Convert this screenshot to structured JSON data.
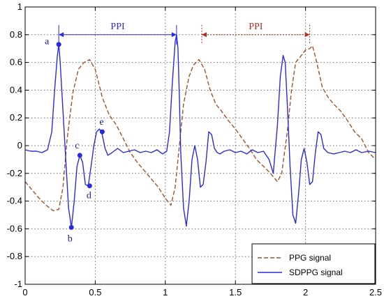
{
  "chart_data": {
    "type": "line",
    "title": "",
    "xlabel": "",
    "ylabel": "",
    "xlim": [
      0,
      2.5
    ],
    "ylim": [
      -1,
      1
    ],
    "xticks": [
      0,
      0.5,
      1,
      1.5,
      2,
      2.5
    ],
    "yticks": [
      -1,
      -0.8,
      -0.6,
      -0.4,
      -0.2,
      0,
      0.2,
      0.4,
      0.6,
      0.8,
      1
    ],
    "xtick_labels": [
      "0",
      "0.5",
      "1",
      "1.5",
      "2",
      "2.5"
    ],
    "ytick_labels": [
      "-1",
      "-0.8",
      "-0.6",
      "-0.4",
      "-0.2",
      "0",
      "0.2",
      "0.4",
      "0.6",
      "0.8",
      "1"
    ],
    "grid": true,
    "legend_position": "bottom-right",
    "series": [
      {
        "name": "PPG signal",
        "color": "#a0522d",
        "style": "dashed",
        "x": [
          0,
          0.05,
          0.1,
          0.15,
          0.2,
          0.24,
          0.27,
          0.3,
          0.34,
          0.38,
          0.42,
          0.46,
          0.5,
          0.55,
          0.6,
          0.65,
          0.7,
          0.75,
          0.8,
          0.85,
          0.9,
          0.95,
          1.0,
          1.04,
          1.07,
          1.1,
          1.13,
          1.17,
          1.2,
          1.24,
          1.28,
          1.32,
          1.36,
          1.4,
          1.45,
          1.5,
          1.55,
          1.6,
          1.65,
          1.7,
          1.75,
          1.8,
          1.83,
          1.87,
          1.9,
          1.93,
          1.97,
          2.0,
          2.03,
          2.05,
          2.08,
          2.12,
          2.16,
          2.2,
          2.25,
          2.3,
          2.35,
          2.4,
          2.45,
          2.5
        ],
        "y": [
          -0.26,
          -0.32,
          -0.38,
          -0.43,
          -0.47,
          -0.46,
          -0.3,
          0.05,
          0.38,
          0.55,
          0.6,
          0.62,
          0.55,
          0.35,
          0.22,
          0.15,
          0.05,
          -0.05,
          -0.12,
          -0.18,
          -0.24,
          -0.3,
          -0.38,
          -0.43,
          -0.3,
          0.0,
          0.3,
          0.5,
          0.58,
          0.62,
          0.55,
          0.4,
          0.3,
          0.25,
          0.18,
          0.12,
          0.05,
          -0.02,
          -0.1,
          -0.15,
          -0.2,
          -0.26,
          -0.2,
          0.1,
          0.4,
          0.6,
          0.65,
          0.69,
          0.7,
          0.72,
          0.6,
          0.42,
          0.35,
          0.3,
          0.25,
          0.18,
          0.1,
          0.05,
          -0.05,
          -0.1
        ]
      },
      {
        "name": "SDPPG signal",
        "color": "#2a2ae0",
        "style": "solid",
        "x": [
          0,
          0.04,
          0.08,
          0.12,
          0.16,
          0.19,
          0.21,
          0.23,
          0.24,
          0.25,
          0.27,
          0.29,
          0.31,
          0.33,
          0.35,
          0.37,
          0.39,
          0.41,
          0.43,
          0.45,
          0.47,
          0.49,
          0.51,
          0.53,
          0.55,
          0.57,
          0.59,
          0.62,
          0.66,
          0.7,
          0.74,
          0.78,
          0.82,
          0.86,
          0.9,
          0.94,
          0.98,
          1.01,
          1.03,
          1.05,
          1.07,
          1.08,
          1.09,
          1.1,
          1.11,
          1.13,
          1.15,
          1.17,
          1.19,
          1.21,
          1.23,
          1.25,
          1.27,
          1.29,
          1.31,
          1.33,
          1.35,
          1.37,
          1.39,
          1.42,
          1.46,
          1.5,
          1.54,
          1.58,
          1.62,
          1.66,
          1.7,
          1.74,
          1.77,
          1.8,
          1.82,
          1.84,
          1.855,
          1.87,
          1.89,
          1.91,
          1.93,
          1.95,
          1.97,
          1.99,
          2.01,
          2.03,
          2.05,
          2.07,
          2.09,
          2.11,
          2.13,
          2.16,
          2.2,
          2.24,
          2.28,
          2.32,
          2.36,
          2.4,
          2.45,
          2.5
        ],
        "y": [
          -0.03,
          -0.04,
          -0.04,
          -0.05,
          -0.03,
          0.1,
          0.4,
          0.65,
          0.73,
          0.6,
          0.25,
          -0.1,
          -0.45,
          -0.59,
          -0.4,
          -0.15,
          -0.07,
          -0.12,
          -0.28,
          -0.29,
          -0.15,
          0.0,
          0.1,
          0.12,
          0.08,
          -0.02,
          -0.07,
          -0.05,
          -0.02,
          -0.05,
          -0.04,
          -0.03,
          -0.05,
          -0.04,
          -0.05,
          -0.03,
          -0.06,
          -0.04,
          0.1,
          0.45,
          0.75,
          0.8,
          0.7,
          0.35,
          -0.05,
          -0.45,
          -0.58,
          -0.4,
          -0.1,
          0.0,
          -0.1,
          -0.3,
          -0.28,
          -0.12,
          0.1,
          0.08,
          -0.02,
          -0.05,
          -0.06,
          -0.04,
          -0.03,
          -0.05,
          -0.04,
          -0.06,
          -0.03,
          -0.05,
          -0.04,
          -0.1,
          -0.2,
          0.15,
          0.5,
          0.65,
          0.6,
          0.3,
          -0.15,
          -0.5,
          -0.56,
          -0.35,
          -0.1,
          -0.02,
          -0.12,
          -0.28,
          -0.26,
          -0.05,
          0.1,
          0.08,
          -0.02,
          -0.05,
          -0.06,
          -0.05,
          -0.04,
          -0.05,
          -0.03,
          -0.05,
          -0.04,
          -0.05
        ]
      }
    ],
    "points": [
      {
        "label": "a",
        "x": 0.24,
        "y": 0.73
      },
      {
        "label": "b",
        "x": 0.33,
        "y": -0.59
      },
      {
        "label": "c",
        "x": 0.39,
        "y": -0.07
      },
      {
        "label": "d",
        "x": 0.46,
        "y": -0.29
      },
      {
        "label": "e",
        "x": 0.55,
        "y": 0.1
      }
    ],
    "annotations": [
      {
        "text": "PPI",
        "x_start": 0.24,
        "x_end": 1.08,
        "y": 0.8,
        "color": "#2a2ae0",
        "style": "solid"
      },
      {
        "text": "PPI",
        "x_start": 1.26,
        "x_end": 2.03,
        "y": 0.8,
        "color": "#b03020",
        "style": "dotted"
      }
    ]
  }
}
